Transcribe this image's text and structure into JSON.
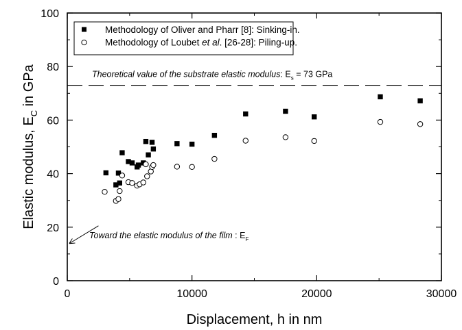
{
  "chart_data": {
    "type": "scatter",
    "title": "",
    "xlabel": "Displacement, h in nm",
    "ylabel": {
      "main": "Elastic modulus, E",
      "sub": "C",
      "rest": " in GPa"
    },
    "xlim": [
      0,
      30000
    ],
    "ylim": [
      0,
      100
    ],
    "x_ticks": [
      0,
      10000,
      20000,
      30000
    ],
    "y_ticks": [
      0,
      20,
      40,
      60,
      80,
      100
    ],
    "grid": false,
    "legend_position": "top-left",
    "series": [
      {
        "name": "Methodology of Oliver and Pharr [8]: Sinking-in.",
        "marker": "filled-square",
        "color": "#000000",
        "points": [
          [
            3100,
            40.3
          ],
          [
            3900,
            35.8
          ],
          [
            4100,
            40.2
          ],
          [
            4200,
            36.5
          ],
          [
            4400,
            47.8
          ],
          [
            4900,
            44.5
          ],
          [
            5200,
            44.0
          ],
          [
            5600,
            42.5
          ],
          [
            5700,
            43.2
          ],
          [
            6100,
            44.0
          ],
          [
            6300,
            52.0
          ],
          [
            6500,
            47.0
          ],
          [
            6800,
            51.7
          ],
          [
            6900,
            49.2
          ],
          [
            8800,
            51.2
          ],
          [
            10000,
            51.0
          ],
          [
            11800,
            54.3
          ],
          [
            14300,
            62.3
          ],
          [
            17500,
            63.3
          ],
          [
            19800,
            61.2
          ],
          [
            25100,
            68.7
          ],
          [
            28300,
            67.2
          ]
        ]
      },
      {
        "name_parts": [
          "Methodology of Loubet ",
          "et al",
          ". [26-28]: Piling-up."
        ],
        "marker": "open-circle",
        "color": "#000000",
        "points": [
          [
            3000,
            33.2
          ],
          [
            3900,
            29.8
          ],
          [
            4100,
            30.5
          ],
          [
            4200,
            33.5
          ],
          [
            4400,
            39.3
          ],
          [
            4900,
            36.8
          ],
          [
            5200,
            36.5
          ],
          [
            5600,
            35.5
          ],
          [
            5800,
            36.0
          ],
          [
            6100,
            36.7
          ],
          [
            6300,
            43.5
          ],
          [
            6400,
            39.0
          ],
          [
            6700,
            40.8
          ],
          [
            6800,
            42.5
          ],
          [
            6900,
            43.2
          ],
          [
            8800,
            42.6
          ],
          [
            10000,
            42.5
          ],
          [
            11800,
            45.5
          ],
          [
            14300,
            52.3
          ],
          [
            17500,
            53.6
          ],
          [
            19800,
            52.2
          ],
          [
            25100,
            59.3
          ],
          [
            28300,
            58.5
          ]
        ]
      }
    ],
    "reference_line": {
      "y": 73,
      "style": "dashed",
      "label_italic": "Theoretical value of the substrate elastic modulus",
      "label_rest_a": ": E",
      "label_sub": "s",
      "label_rest_b": " = 73 GPa"
    },
    "annotation_arrow": {
      "from": [
        2500,
        20.5
      ],
      "to": [
        200,
        14
      ],
      "label_italic": "Toward the elastic modulus of the film",
      "label_rest": " : E",
      "label_sub": "F"
    }
  }
}
